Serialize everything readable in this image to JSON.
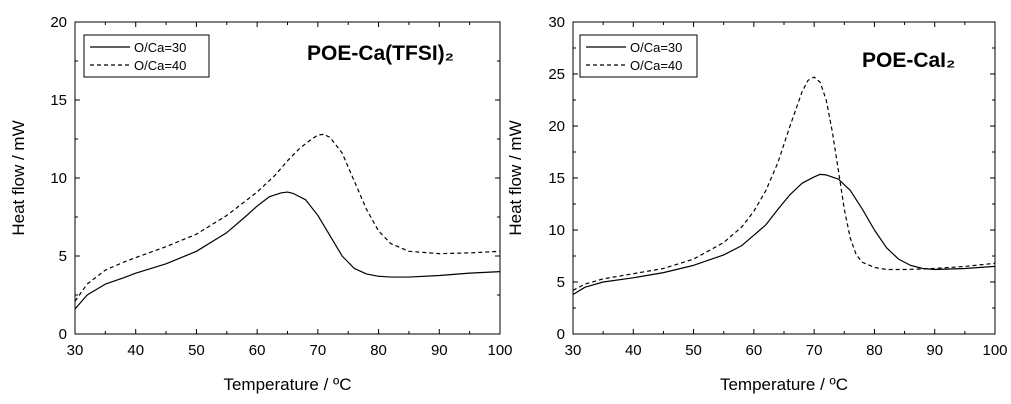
{
  "chart_data": [
    {
      "type": "line",
      "title": "POE-Ca(TFSI)₂",
      "xlabel": "Temperature / ºC",
      "ylabel": "Heat flow / mW",
      "xlim": [
        30,
        100
      ],
      "ylim": [
        0,
        20
      ],
      "xticks": [
        "30",
        "40",
        "50",
        "60",
        "70",
        "80",
        "90",
        "100"
      ],
      "yticks": [
        "0",
        "5",
        "10",
        "15",
        "20"
      ],
      "legend_position": "top-left",
      "grid": false,
      "series": [
        {
          "name": "O/Ca=30",
          "style": "solid",
          "x": [
            30,
            32,
            35,
            38,
            40,
            45,
            50,
            55,
            58,
            60,
            62,
            64,
            65,
            66,
            68,
            70,
            72,
            74,
            76,
            78,
            80,
            82,
            85,
            90,
            95,
            100
          ],
          "y": [
            1.6,
            2.5,
            3.2,
            3.6,
            3.9,
            4.5,
            5.3,
            6.5,
            7.5,
            8.2,
            8.8,
            9.05,
            9.1,
            9.0,
            8.6,
            7.6,
            6.3,
            5.0,
            4.2,
            3.85,
            3.7,
            3.65,
            3.65,
            3.75,
            3.9,
            4.0
          ]
        },
        {
          "name": "O/Ca=40",
          "style": "dashed",
          "x": [
            30,
            32,
            35,
            38,
            40,
            45,
            50,
            55,
            58,
            60,
            63,
            65,
            67,
            69,
            70,
            71,
            72,
            74,
            76,
            78,
            80,
            82,
            85,
            90,
            95,
            100
          ],
          "y": [
            2.1,
            3.2,
            4.1,
            4.6,
            4.9,
            5.6,
            6.4,
            7.6,
            8.5,
            9.1,
            10.2,
            11.1,
            11.9,
            12.5,
            12.75,
            12.8,
            12.6,
            11.6,
            9.8,
            8.0,
            6.6,
            5.8,
            5.3,
            5.15,
            5.2,
            5.3
          ]
        }
      ]
    },
    {
      "type": "line",
      "title": "POE-CaI₂",
      "xlabel": "Temperature / ºC",
      "ylabel": "Heat flow / mW",
      "xlim": [
        30,
        100
      ],
      "ylim": [
        0,
        30
      ],
      "xticks": [
        "30",
        "40",
        "50",
        "60",
        "70",
        "80",
        "90",
        "100"
      ],
      "yticks": [
        "0",
        "5",
        "10",
        "15",
        "20",
        "25",
        "30"
      ],
      "legend_position": "top-left",
      "grid": false,
      "series": [
        {
          "name": "O/Ca=30",
          "style": "solid",
          "x": [
            30,
            32,
            35,
            40,
            45,
            50,
            55,
            58,
            60,
            62,
            64,
            66,
            68,
            70,
            71,
            72,
            74,
            76,
            78,
            80,
            82,
            84,
            86,
            88,
            90,
            95,
            100
          ],
          "y": [
            3.8,
            4.5,
            5.0,
            5.4,
            5.9,
            6.6,
            7.6,
            8.5,
            9.5,
            10.5,
            12.0,
            13.4,
            14.5,
            15.1,
            15.35,
            15.3,
            14.9,
            13.8,
            12.0,
            10.0,
            8.3,
            7.2,
            6.6,
            6.3,
            6.2,
            6.3,
            6.5
          ]
        },
        {
          "name": "O/Ca=40",
          "style": "dashed",
          "x": [
            30,
            32,
            35,
            40,
            45,
            50,
            55,
            58,
            60,
            62,
            64,
            66,
            68,
            69,
            70,
            71,
            72,
            73,
            74,
            75,
            76,
            77,
            78,
            80,
            82,
            85,
            90,
            95,
            100
          ],
          "y": [
            4.2,
            4.8,
            5.3,
            5.8,
            6.3,
            7.2,
            8.8,
            10.3,
            11.8,
            13.8,
            16.5,
            20.0,
            23.3,
            24.4,
            24.7,
            24.2,
            22.5,
            19.5,
            15.8,
            12.0,
            9.2,
            7.6,
            6.9,
            6.4,
            6.2,
            6.2,
            6.3,
            6.5,
            6.8
          ]
        }
      ]
    }
  ]
}
